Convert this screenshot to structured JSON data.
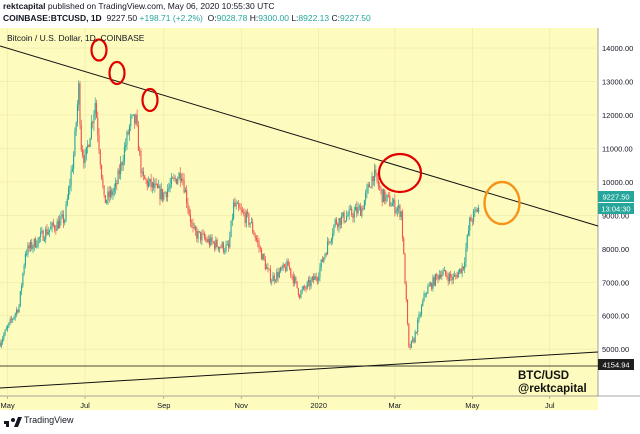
{
  "header": {
    "publisher": "rektcapital",
    "published_on": "published on TradingView.com, May 06, 2020 10:55:30 UTC",
    "symbol_line": "COINBASE:BTCUSD, 1D",
    "last": "9227.50",
    "change": "+198.71 (+2.2%)",
    "ohlc": {
      "open_label": "O:",
      "open": "9028.78",
      "high_label": "H:",
      "high": "9300.00",
      "low_label": "L:",
      "low": "8922.13",
      "close_label": "C:",
      "close": "9227.50"
    }
  },
  "chart_data": {
    "type": "candlestick",
    "title": "Bitcoin / U.S. Dollar, 1D, COINBASE",
    "ylim": [
      3600,
      14600
    ],
    "y_ticks": [
      "14000.00",
      "13000.00",
      "12000.00",
      "11000.00",
      "10000.00",
      "9000.00",
      "8000.00",
      "7000.00",
      "6000.00",
      "5000.00"
    ],
    "x_ticks": [
      "May",
      "Jul",
      "Sep",
      "Nov",
      "2020",
      "Mar",
      "May",
      "Jul"
    ],
    "price_tag": "9227.50",
    "countdown_tag": "13:04:30",
    "level_tag": "4154.94",
    "trendline_label": "BTC/USD",
    "author_label": "@rektcapital",
    "colors": {
      "up": "#26a69a",
      "down": "#ef5350",
      "background": "#fdfbbd",
      "circles": "#e00000",
      "highlight": "#f7931a"
    },
    "x": [
      "2019-05",
      "2019-06",
      "2019-07",
      "2019-08",
      "2019-09",
      "2019-10",
      "2019-11",
      "2019-12",
      "2020-01",
      "2020-02",
      "2020-03",
      "2020-04",
      "2020-05"
    ],
    "close": [
      8550,
      10800,
      10100,
      9600,
      8300,
      9200,
      7550,
      7200,
      9350,
      8550,
      6400,
      8650,
      9227
    ],
    "anchors": [
      [
        "2019-04-25",
        5200
      ],
      [
        "2019-05-10",
        6300
      ],
      [
        "2019-05-15",
        7900
      ],
      [
        "2019-05-31",
        8500
      ],
      [
        "2019-06-15",
        8900
      ],
      [
        "2019-06-22",
        10800
      ],
      [
        "2019-06-26",
        12800
      ],
      [
        "2019-06-28",
        11100
      ],
      [
        "2019-07-01",
        10600
      ],
      [
        "2019-07-09",
        12400
      ],
      [
        "2019-07-16",
        9400
      ],
      [
        "2019-07-25",
        9800
      ],
      [
        "2019-08-06",
        11800
      ],
      [
        "2019-08-10",
        11800
      ],
      [
        "2019-08-15",
        10100
      ],
      [
        "2019-08-31",
        9600
      ],
      [
        "2019-09-15",
        10300
      ],
      [
        "2019-09-24",
        8500
      ],
      [
        "2019-10-07",
        8200
      ],
      [
        "2019-10-22",
        8000
      ],
      [
        "2019-10-26",
        9300
      ],
      [
        "2019-11-08",
        8800
      ],
      [
        "2019-11-22",
        7300
      ],
      [
        "2019-11-25",
        7100
      ],
      [
        "2019-12-08",
        7500
      ],
      [
        "2019-12-17",
        6650
      ],
      [
        "2019-12-31",
        7200
      ],
      [
        "2020-01-14",
        8800
      ],
      [
        "2020-02-04",
        9200
      ],
      [
        "2020-02-13",
        10250
      ],
      [
        "2020-02-20",
        9600
      ],
      [
        "2020-03-06",
        9100
      ],
      [
        "2020-03-12",
        5000
      ],
      [
        "2020-03-16",
        5300
      ],
      [
        "2020-03-25",
        6700
      ],
      [
        "2020-04-06",
        7300
      ],
      [
        "2020-04-16",
        7100
      ],
      [
        "2020-04-24",
        7500
      ],
      [
        "2020-04-29",
        8800
      ],
      [
        "2020-05-06",
        9227
      ]
    ]
  }
}
